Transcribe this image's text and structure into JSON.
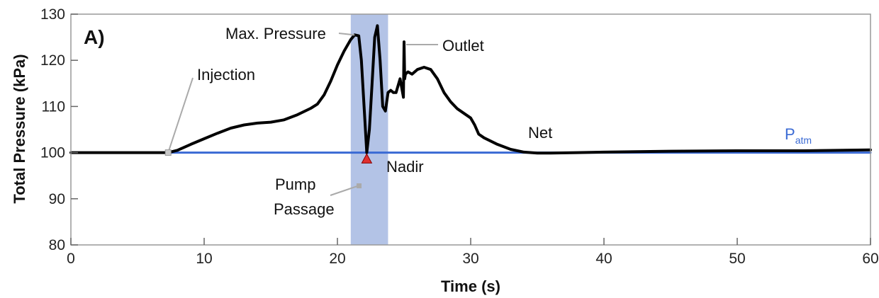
{
  "chart_data": {
    "type": "line",
    "panel_label": "A)",
    "xlabel": "Time (s)",
    "ylabel": "Total Pressure (kPa)",
    "xlim": [
      0,
      60
    ],
    "ylim": [
      80,
      130
    ],
    "x_ticks": [
      0,
      10,
      20,
      30,
      40,
      50,
      60
    ],
    "y_ticks": [
      80,
      90,
      100,
      110,
      120,
      130
    ],
    "grid": false,
    "series": [
      {
        "color": "#000000",
        "x": [
          0,
          2,
          4,
          6,
          7.3,
          8,
          9,
          10,
          11,
          12,
          13,
          14,
          15,
          16,
          17,
          18,
          18.5,
          19,
          19.5,
          20,
          20.5,
          21,
          21.3,
          21.6,
          21.8,
          22.0,
          22.2,
          22.4,
          22.6,
          22.8,
          23.0,
          23.2,
          23.4,
          23.6,
          23.8,
          24.0,
          24.2,
          24.4,
          24.7,
          24.95,
          25.0,
          25.05,
          25.1,
          25.3,
          25.6,
          26,
          26.5,
          27,
          27.5,
          28,
          28.5,
          29,
          29.5,
          30,
          30.3,
          30.6,
          31,
          32,
          33,
          34,
          35,
          36,
          38,
          40,
          45,
          50,
          55,
          58,
          60
        ],
        "y": [
          100,
          100,
          100,
          100,
          100,
          100.5,
          101.8,
          103,
          104.2,
          105.3,
          106,
          106.4,
          106.6,
          107.1,
          108.2,
          109.6,
          110.5,
          112.5,
          115.5,
          119,
          122,
          124.5,
          125.5,
          125.3,
          120,
          110,
          100,
          105,
          115,
          125,
          127.5,
          120,
          110,
          109,
          113,
          113.5,
          113,
          113,
          116,
          112,
          124,
          116,
          117,
          117.5,
          117,
          118,
          118.5,
          118,
          116,
          113,
          111,
          109.5,
          108.5,
          107.5,
          106,
          104,
          103.2,
          101.8,
          100.7,
          100.1,
          99.9,
          99.9,
          100,
          100.1,
          100.3,
          100.4,
          100.4,
          100.5,
          100.6
        ]
      },
      {
        "name": "Patm",
        "color": "#3a6ad4",
        "x": [
          0,
          60
        ],
        "y": [
          100,
          100
        ]
      }
    ],
    "shaded_region": {
      "label_line1": "Pump",
      "label_line2": "Passage",
      "x_start": 21,
      "x_end": 23.8,
      "color": "#b3c3e6"
    },
    "annotations": {
      "injection": {
        "text": "Injection",
        "x": 7.3,
        "y": 100
      },
      "max_pressure": {
        "text": "Max. Pressure",
        "x": 21.5,
        "y": 125.5
      },
      "outlet": {
        "text": "Outlet",
        "x": 25.0,
        "y": 124
      },
      "nadir": {
        "text": "Nadir",
        "x": 22.2,
        "y": 98.5
      },
      "net": {
        "text": "Net"
      },
      "patm": {
        "text": "P",
        "sub": "atm"
      }
    },
    "colors": {
      "main_line": "#000000",
      "patm_line": "#3a6ad4",
      "nadir_marker": "#e03030",
      "injection_marker": "#c8c8c8"
    }
  }
}
